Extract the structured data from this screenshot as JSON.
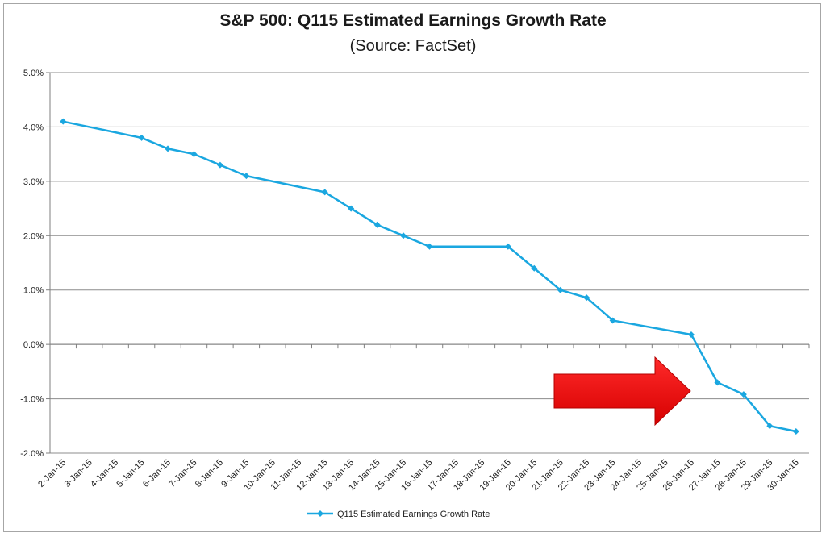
{
  "chart_data": {
    "type": "line",
    "title": "S&P 500: Q115 Estimated Earnings Growth Rate",
    "subtitle": "(Source: FactSet)",
    "xlabel": "",
    "ylabel": "",
    "categories": [
      "2-Jan-15",
      "3-Jan-15",
      "4-Jan-15",
      "5-Jan-15",
      "6-Jan-15",
      "7-Jan-15",
      "8-Jan-15",
      "9-Jan-15",
      "10-Jan-15",
      "11-Jan-15",
      "12-Jan-15",
      "13-Jan-15",
      "14-Jan-15",
      "15-Jan-15",
      "16-Jan-15",
      "17-Jan-15",
      "18-Jan-15",
      "19-Jan-15",
      "20-Jan-15",
      "21-Jan-15",
      "22-Jan-15",
      "23-Jan-15",
      "24-Jan-15",
      "25-Jan-15",
      "26-Jan-15",
      "27-Jan-15",
      "28-Jan-15",
      "29-Jan-15",
      "30-Jan-15"
    ],
    "series": [
      {
        "name": "Q115 Estimated Earnings Growth Rate",
        "color": "#1aa7e0",
        "values": [
          4.1,
          null,
          null,
          3.8,
          3.6,
          3.5,
          3.3,
          3.1,
          null,
          null,
          2.8,
          2.5,
          2.2,
          2.0,
          1.8,
          null,
          null,
          1.8,
          1.4,
          1.0,
          0.86,
          0.44,
          null,
          null,
          0.18,
          -0.7,
          -0.92,
          -1.5,
          -1.6
        ]
      }
    ],
    "ylim": [
      -2.0,
      5.0
    ],
    "yticks": [
      -2.0,
      -1.0,
      0.0,
      1.0,
      2.0,
      3.0,
      4.0,
      5.0
    ],
    "ytick_labels": [
      "-2.0%",
      "-1.0%",
      "0.0%",
      "1.0%",
      "2.0%",
      "3.0%",
      "4.0%",
      "5.0%"
    ],
    "grid": true,
    "legend_position": "bottom",
    "annotation": {
      "type": "arrow",
      "direction": "right",
      "color": "#ff0000",
      "points_to": "26-Jan-15"
    }
  }
}
